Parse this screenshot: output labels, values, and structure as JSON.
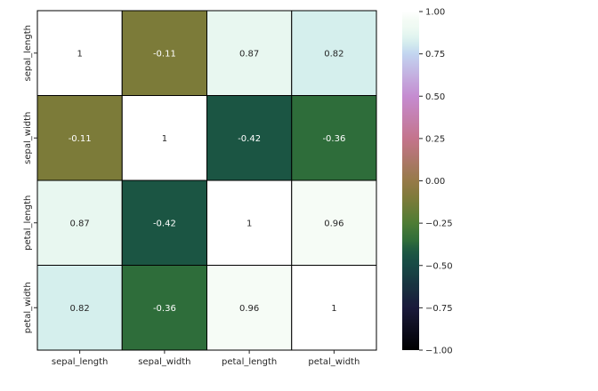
{
  "chart_data": {
    "type": "heatmap",
    "title": "",
    "xlabel": "",
    "ylabel": "",
    "x_labels": [
      "sepal_length",
      "sepal_width",
      "petal_length",
      "petal_width"
    ],
    "y_labels": [
      "sepal_length",
      "sepal_width",
      "petal_length",
      "petal_width"
    ],
    "values": [
      [
        1,
        -0.11,
        0.87,
        0.82
      ],
      [
        -0.11,
        1,
        -0.42,
        -0.36
      ],
      [
        0.87,
        -0.42,
        1,
        0.96
      ],
      [
        0.82,
        -0.36,
        0.96,
        1
      ]
    ],
    "cell_labels": [
      [
        "1",
        "-0.11",
        "0.87",
        "0.82"
      ],
      [
        "-0.11",
        "1",
        "-0.42",
        "-0.36"
      ],
      [
        "0.87",
        "-0.42",
        "1",
        "0.96"
      ],
      [
        "0.82",
        "-0.36",
        "0.96",
        "1"
      ]
    ],
    "vmin": -1,
    "vmax": 1,
    "colormap": "cubehelix",
    "cell_border_color": "#000000",
    "colorbar": {
      "ticks": [
        1.0,
        0.75,
        0.5,
        0.25,
        0.0,
        -0.25,
        -0.5,
        -0.75,
        -1.0
      ],
      "tick_labels": [
        "1.00",
        "0.75",
        "0.50",
        "0.25",
        "0.00",
        "−0.25",
        "−0.50",
        "−0.75",
        "−1.00"
      ],
      "placement": "right"
    }
  }
}
